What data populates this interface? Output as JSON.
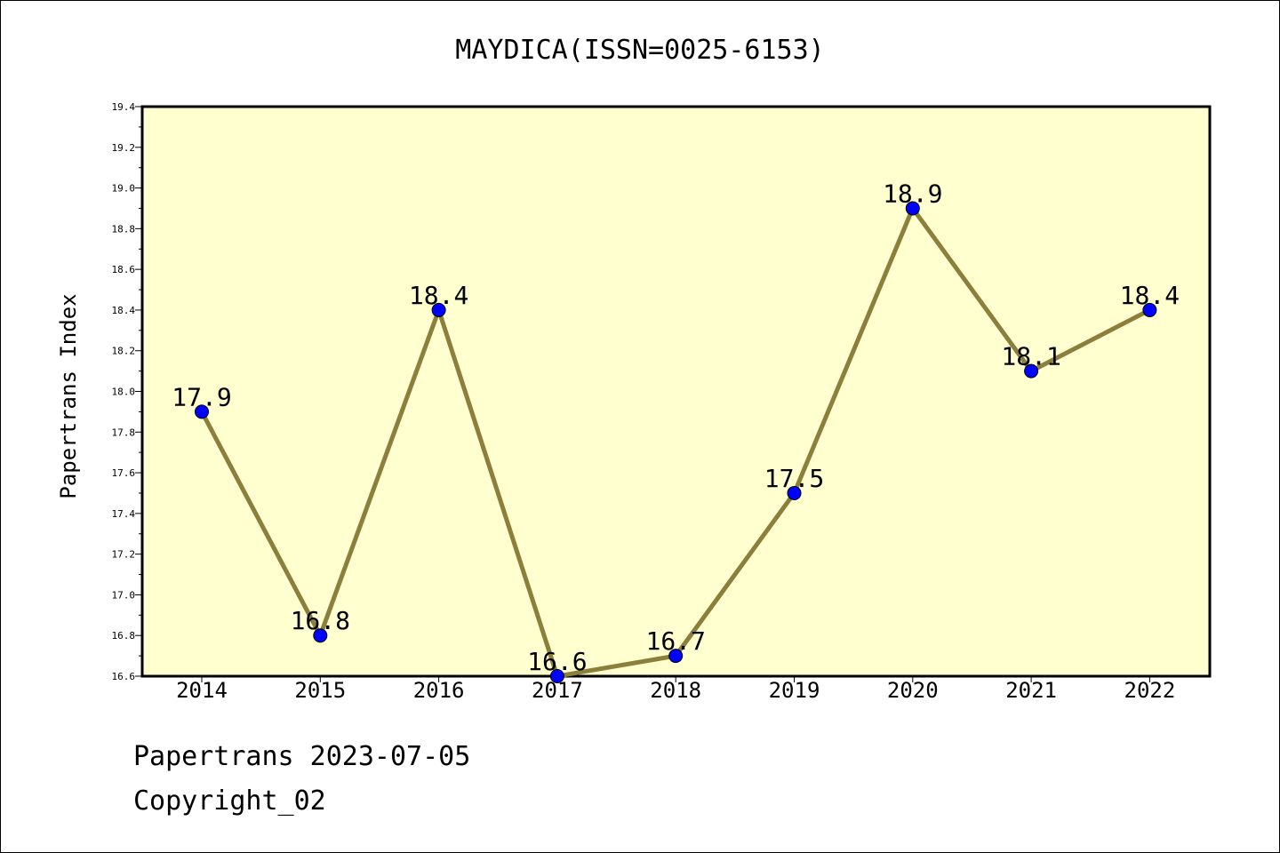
{
  "chart_data": {
    "type": "line",
    "title": "MAYDICA(ISSN=0025-6153)",
    "ylabel": "Papertrans Index",
    "xlabel": "",
    "categories": [
      "2014",
      "2015",
      "2016",
      "2017",
      "2018",
      "2019",
      "2020",
      "2021",
      "2022"
    ],
    "values": [
      17.9,
      16.8,
      18.4,
      16.6,
      16.7,
      17.5,
      18.9,
      18.1,
      18.4
    ],
    "data_labels": [
      "17.9",
      "16.8",
      "18.4",
      "16.6",
      "16.7",
      "17.5",
      "18.9",
      "18.1",
      "18.4"
    ],
    "ylim": [
      16.6,
      19.4
    ],
    "yticks": [
      "16.6",
      "16.8",
      "17.0",
      "17.2",
      "17.4",
      "17.6",
      "17.8",
      "18.0",
      "18.2",
      "18.4",
      "18.6",
      "18.8",
      "19.0",
      "19.2",
      "19.4"
    ],
    "grid": false,
    "colors": {
      "plot_background": "#ffffd0",
      "line": "#8c7f3c",
      "marker": "#0000ff"
    }
  },
  "footer": {
    "line1": "Papertrans 2023-07-05",
    "line2": "Copyright_02"
  }
}
